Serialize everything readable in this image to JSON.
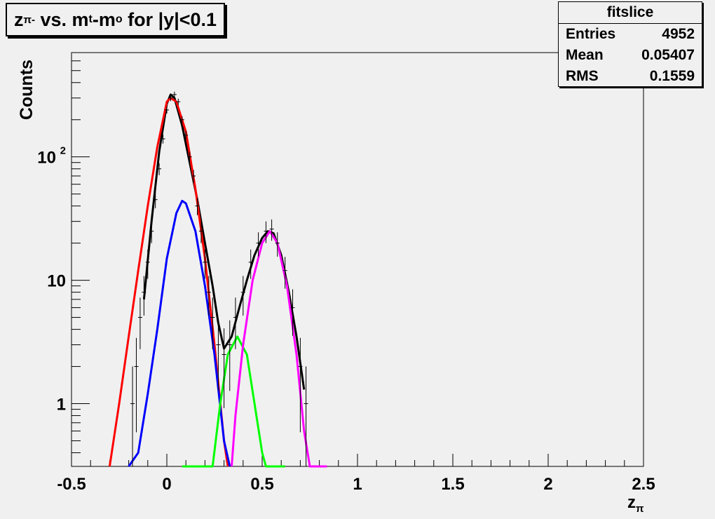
{
  "title": {
    "base": "z",
    "sub": "π-",
    "mid": " vs. m",
    "sub2": "t",
    "mid2": "-m",
    "sub3": "o",
    "tail": " for |y|<0.1"
  },
  "stats": {
    "name": "fitslice",
    "rows": [
      {
        "label": "Entries",
        "value": "4952"
      },
      {
        "label": "Mean",
        "value": "0.05407"
      },
      {
        "label": "RMS",
        "value": "0.1559"
      }
    ]
  },
  "chart_data": {
    "type": "scatter",
    "xlabel": {
      "base": "z",
      "sub": "π"
    },
    "ylabel": "Counts",
    "xlim": [
      -0.5,
      2.5
    ],
    "ylim": [
      0.31,
      700
    ],
    "ylog": true,
    "x_ticks": [
      {
        "v": -0.5,
        "label": "-0.5"
      },
      {
        "v": 0,
        "label": "0"
      },
      {
        "v": 0.5,
        "label": "0.5"
      },
      {
        "v": 1,
        "label": "1"
      },
      {
        "v": 1.5,
        "label": "1.5"
      },
      {
        "v": 2,
        "label": "2"
      },
      {
        "v": 2.5,
        "label": "2.5"
      }
    ],
    "y_ticks": [
      {
        "v": 1,
        "label": "1"
      },
      {
        "v": 10,
        "label": "10"
      },
      {
        "v": 100,
        "label": "10",
        "sup": "2"
      }
    ],
    "points": [
      {
        "x": -0.18,
        "y": 1
      },
      {
        "x": -0.16,
        "y": 2
      },
      {
        "x": -0.14,
        "y": 5
      },
      {
        "x": -0.12,
        "y": 8
      },
      {
        "x": -0.1,
        "y": 14
      },
      {
        "x": -0.08,
        "y": 25
      },
      {
        "x": -0.06,
        "y": 45
      },
      {
        "x": -0.04,
        "y": 80
      },
      {
        "x": -0.02,
        "y": 140
      },
      {
        "x": 0.0,
        "y": 240
      },
      {
        "x": 0.02,
        "y": 300
      },
      {
        "x": 0.04,
        "y": 320
      },
      {
        "x": 0.06,
        "y": 280
      },
      {
        "x": 0.08,
        "y": 200
      },
      {
        "x": 0.1,
        "y": 150
      },
      {
        "x": 0.12,
        "y": 100
      },
      {
        "x": 0.14,
        "y": 70
      },
      {
        "x": 0.16,
        "y": 40
      },
      {
        "x": 0.18,
        "y": 25
      },
      {
        "x": 0.2,
        "y": 14
      },
      {
        "x": 0.22,
        "y": 8
      },
      {
        "x": 0.24,
        "y": 5
      },
      {
        "x": 0.27,
        "y": 3
      },
      {
        "x": 0.3,
        "y": 2.5
      },
      {
        "x": 0.33,
        "y": 3
      },
      {
        "x": 0.36,
        "y": 5
      },
      {
        "x": 0.4,
        "y": 8
      },
      {
        "x": 0.44,
        "y": 14
      },
      {
        "x": 0.48,
        "y": 20
      },
      {
        "x": 0.52,
        "y": 25
      },
      {
        "x": 0.55,
        "y": 26
      },
      {
        "x": 0.58,
        "y": 20
      },
      {
        "x": 0.62,
        "y": 12
      },
      {
        "x": 0.66,
        "y": 6
      },
      {
        "x": 0.7,
        "y": 2
      },
      {
        "x": 0.73,
        "y": 1
      }
    ],
    "curves": [
      {
        "color": "#000000",
        "x": [
          -0.12,
          -0.08,
          -0.04,
          0.0,
          0.02,
          0.04,
          0.08,
          0.12,
          0.16,
          0.2,
          0.24,
          0.27,
          0.3,
          0.34,
          0.38,
          0.42,
          0.46,
          0.5,
          0.53,
          0.56,
          0.6,
          0.64,
          0.68,
          0.72
        ],
        "y": [
          7,
          30,
          110,
          270,
          320,
          300,
          180,
          90,
          45,
          20,
          9,
          4.5,
          2.8,
          3.5,
          6,
          10,
          16,
          22,
          25,
          24,
          16,
          8,
          3.5,
          1.3
        ]
      },
      {
        "color": "#ff0000",
        "x": [
          -0.3,
          -0.25,
          -0.2,
          -0.15,
          -0.1,
          -0.05,
          0.0,
          0.02,
          0.05,
          0.1,
          0.15,
          0.2,
          0.25,
          0.3,
          0.32
        ],
        "y": [
          0.31,
          1,
          3.5,
          12,
          40,
          120,
          280,
          300,
          280,
          160,
          55,
          15,
          3,
          0.5,
          0.31
        ]
      },
      {
        "color": "#0000ff",
        "x": [
          -0.2,
          -0.15,
          -0.1,
          -0.05,
          0.0,
          0.05,
          0.08,
          0.1,
          0.15,
          0.2,
          0.25,
          0.3,
          0.33
        ],
        "y": [
          0.31,
          0.4,
          1.2,
          4,
          15,
          35,
          44,
          42,
          25,
          9,
          2.5,
          0.5,
          0.31
        ]
      },
      {
        "color": "#00ff00",
        "x": [
          0.08,
          0.24,
          0.28,
          0.32,
          0.37,
          0.42,
          0.46,
          0.5,
          0.52,
          0.62
        ],
        "y": [
          0.31,
          0.31,
          1,
          2.5,
          3.5,
          2.5,
          1,
          0.4,
          0.31,
          0.31
        ]
      },
      {
        "color": "#ff00ff",
        "x": [
          0.34,
          0.36,
          0.4,
          0.45,
          0.5,
          0.54,
          0.58,
          0.63,
          0.68,
          0.72,
          0.75,
          0.84
        ],
        "y": [
          0.31,
          0.8,
          3,
          10,
          20,
          25,
          20,
          9,
          2.5,
          0.6,
          0.31,
          0.31
        ]
      }
    ]
  }
}
